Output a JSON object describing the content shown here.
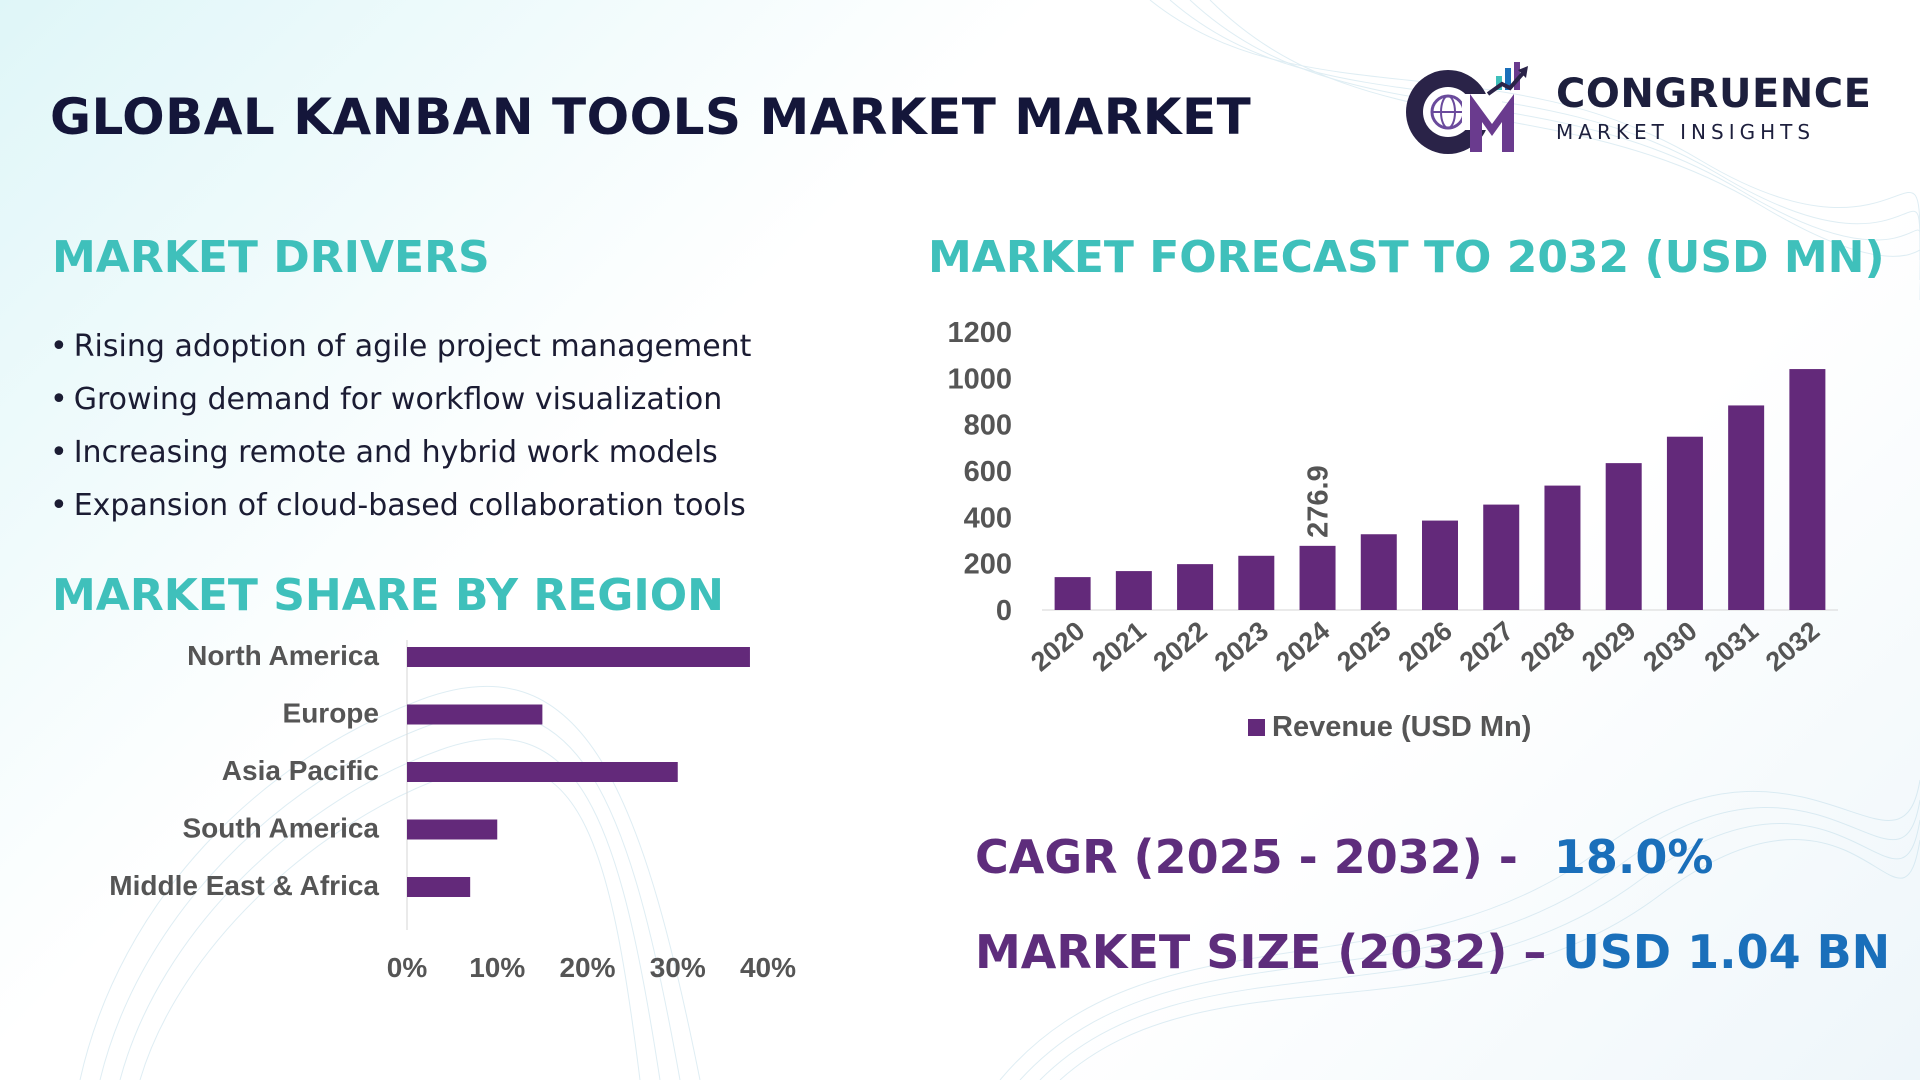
{
  "header": {
    "title": "GLOBAL KANBAN TOOLS MARKET MARKET",
    "logo_mark": "CM",
    "logo_name": "CONGRUENCE",
    "logo_sub": "MARKET INSIGHTS"
  },
  "drivers": {
    "title": "MARKET DRIVERS",
    "items": [
      "Rising adoption of agile project management",
      "Growing demand for workflow visualization",
      "Increasing remote and hybrid work models",
      "Expansion of cloud-based collaboration tools"
    ]
  },
  "region": {
    "title": "MARKET SHARE BY REGION"
  },
  "forecast": {
    "title": "MARKET FORECAST TO 2032 (USD MN)"
  },
  "stats": {
    "cagr_label": "CAGR (2025 - 2032) -",
    "cagr_value": "18.0%",
    "size_label": "MARKET SIZE (2032) –",
    "size_value": "USD 1.04 BN"
  },
  "colors": {
    "bar": "#63297a",
    "accent": "#3fc0bb",
    "title": "#14163a",
    "stat_label": "#5e2d7c",
    "stat_value": "#1a6fba"
  },
  "chart_data": [
    {
      "type": "bar",
      "orientation": "horizontal",
      "title": "MARKET SHARE BY REGION",
      "categories": [
        "North America",
        "Europe",
        "Asia Pacific",
        "South America",
        "Middle East & Africa"
      ],
      "values": [
        38,
        15,
        30,
        10,
        7
      ],
      "xlim": [
        0,
        40
      ],
      "xticks": [
        0,
        10,
        20,
        30,
        40
      ],
      "xtick_labels": [
        "0%",
        "10%",
        "20%",
        "30%",
        "40%"
      ],
      "grid": false
    },
    {
      "type": "bar",
      "title": "MARKET FORECAST TO 2032 (USD MN)",
      "categories": [
        "2020",
        "2021",
        "2022",
        "2023",
        "2024",
        "2025",
        "2026",
        "2027",
        "2028",
        "2029",
        "2030",
        "2031",
        "2032"
      ],
      "series": [
        {
          "name": "Revenue (USD Mn)",
          "values": [
            142,
            168,
            198,
            234,
            276.9,
            327,
            386,
            455,
            537,
            634,
            748,
            883,
            1040
          ]
        }
      ],
      "annotations": [
        {
          "category": "2024",
          "label": "276.9"
        }
      ],
      "ylim": [
        0,
        1200
      ],
      "yticks": [
        0,
        200,
        400,
        600,
        800,
        1000,
        1200
      ],
      "legend": "bottom",
      "grid": false
    }
  ]
}
